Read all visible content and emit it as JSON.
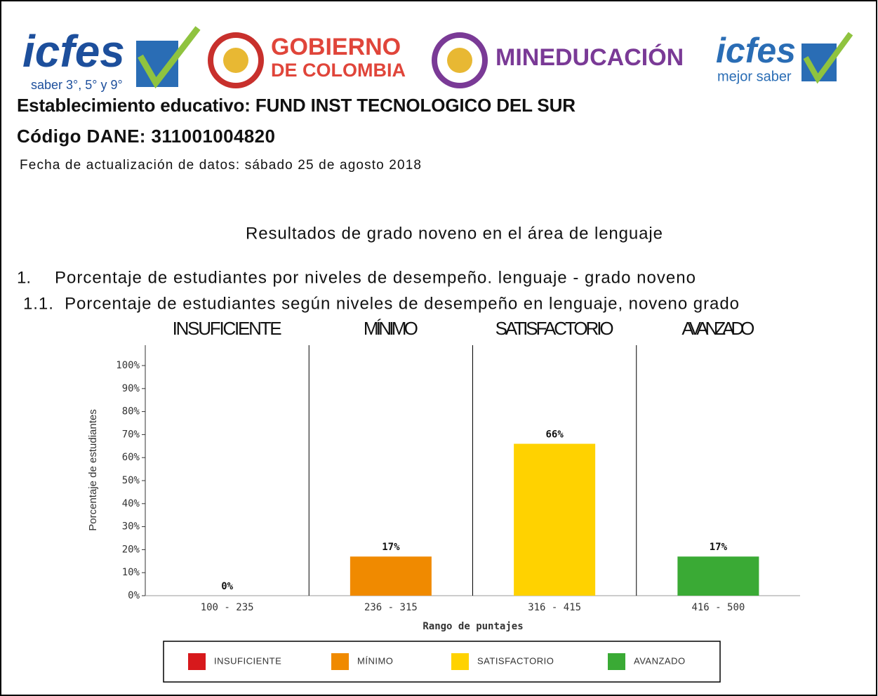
{
  "header": {
    "logos": {
      "icfes": "icfes",
      "saber": "saber 3°, 5° y 9°",
      "gobierno_1": "GOBIERNO",
      "gobierno_2": "DE COLOMBIA",
      "mineducacion": "MINEDUCACIÓN",
      "icfes2": "icfes",
      "mejor_saber": "mejor saber"
    },
    "establecimiento": "Establecimiento educativo: FUND INST TECNOLOGICO DEL SUR",
    "codigo": "Código DANE: 311001004820",
    "fecha": "Fecha de actualización de datos: sábado 25 de agosto 2018",
    "resultados": "Resultados de grado noveno en el área de lenguaje",
    "section_num": "1.",
    "section_title": "Porcentaje de estudiantes por niveles de desempeño. lenguaje - grado noveno",
    "subsection": "1.1.  Porcentaje de estudiantes según niveles de desempeño en lenguaje, noveno grado"
  },
  "chart_data": {
    "type": "bar",
    "levels": [
      "INSUFICIENTE",
      "MÍNIMO",
      "SATISFACTORIO",
      "AVANZADO"
    ],
    "categories": [
      "100 - 235",
      "236 - 315",
      "316 - 415",
      "416 - 500"
    ],
    "values": [
      0,
      17,
      66,
      17
    ],
    "value_labels": [
      "0%",
      "17%",
      "66%",
      "17%"
    ],
    "colors": [
      "#d7191c",
      "#f08a00",
      "#ffd200",
      "#3aaa35"
    ],
    "ylim": [
      0,
      100
    ],
    "yticks": [
      {
        "value": 0,
        "label": "0%"
      },
      {
        "value": 10,
        "label": "10%"
      },
      {
        "value": 20,
        "label": "20%"
      },
      {
        "value": 30,
        "label": "30%"
      },
      {
        "value": 40,
        "label": "40%"
      },
      {
        "value": 50,
        "label": "50%"
      },
      {
        "value": 60,
        "label": "60%"
      },
      {
        "value": 70,
        "label": "70%"
      },
      {
        "value": 80,
        "label": "80%"
      },
      {
        "value": 90,
        "label": "90%"
      },
      {
        "value": 100,
        "label": "100%"
      }
    ],
    "ylabel": "Porcentaje de estudiantes",
    "xlabel": "Rango de puntajes",
    "legend": true
  }
}
